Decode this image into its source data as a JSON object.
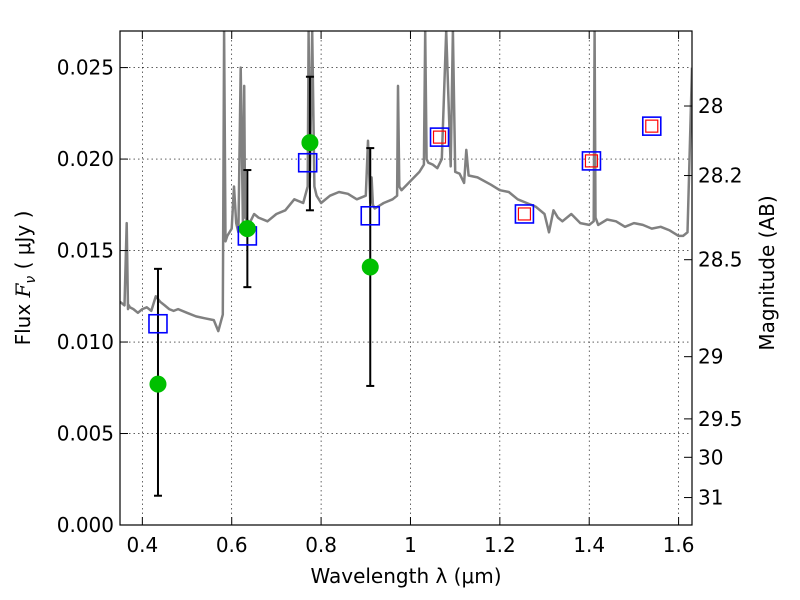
{
  "chart_data": {
    "type": "scatter",
    "xlabel": "Wavelength  λ (μm)",
    "ylabel": "Flux  F_ν  ( μJy )",
    "ylabel_parts": {
      "pre": "Flux  ",
      "symbol": "F",
      "sub": "ν",
      "post": "  ( μJy )"
    },
    "y2label": "Magnitude (AB)",
    "xlim": [
      0.35,
      1.63
    ],
    "ylim": [
      0.0,
      0.027
    ],
    "grid": true,
    "x_ticks": [
      {
        "v": 0.4,
        "label": "0.4"
      },
      {
        "v": 0.6,
        "label": "0.6"
      },
      {
        "v": 0.8,
        "label": "0.8"
      },
      {
        "v": 1.0,
        "label": "1"
      },
      {
        "v": 1.2,
        "label": "1.2"
      },
      {
        "v": 1.4,
        "label": "1.4"
      },
      {
        "v": 1.6,
        "label": "1.6"
      }
    ],
    "y_ticks": [
      {
        "v": 0.0,
        "label": "0.000"
      },
      {
        "v": 0.005,
        "label": "0.005"
      },
      {
        "v": 0.01,
        "label": "0.010"
      },
      {
        "v": 0.015,
        "label": "0.015"
      },
      {
        "v": 0.02,
        "label": "0.020"
      },
      {
        "v": 0.025,
        "label": "0.025"
      }
    ],
    "y2_ticks": [
      {
        "flux": 0.0229,
        "label": "28"
      },
      {
        "flux": 0.0191,
        "label": "28.2"
      },
      {
        "flux": 0.0145,
        "label": "28.5"
      },
      {
        "flux": 0.0092,
        "label": "29"
      },
      {
        "flux": 0.0058,
        "label": "29.5"
      },
      {
        "flux": 0.0037,
        "label": "30"
      },
      {
        "flux": 0.0015,
        "label": "31"
      }
    ],
    "series": [
      {
        "kind": "model_spectrum",
        "color": "#808080",
        "x": [
          0.35,
          0.36,
          0.365,
          0.368,
          0.37,
          0.372,
          0.38,
          0.39,
          0.4,
          0.41,
          0.42,
          0.43,
          0.44,
          0.45,
          0.46,
          0.47,
          0.48,
          0.5,
          0.52,
          0.54,
          0.56,
          0.57,
          0.58,
          0.583,
          0.586,
          0.59,
          0.6,
          0.605,
          0.61,
          0.615,
          0.62,
          0.625,
          0.628,
          0.63,
          0.64,
          0.65,
          0.66,
          0.68,
          0.7,
          0.72,
          0.74,
          0.76,
          0.77,
          0.772,
          0.775,
          0.78,
          0.785,
          0.79,
          0.8,
          0.82,
          0.84,
          0.86,
          0.88,
          0.9,
          0.905,
          0.91,
          0.913,
          0.916,
          0.92,
          0.94,
          0.96,
          0.97,
          0.972,
          0.975,
          0.98,
          1.0,
          1.02,
          1.03,
          1.033,
          1.036,
          1.04,
          1.05,
          1.06,
          1.07,
          1.08,
          1.09,
          1.095,
          1.1,
          1.11,
          1.12,
          1.125,
          1.13,
          1.15,
          1.18,
          1.2,
          1.22,
          1.24,
          1.26,
          1.28,
          1.3,
          1.31,
          1.32,
          1.33,
          1.34,
          1.36,
          1.38,
          1.4,
          1.41,
          1.412,
          1.414,
          1.42,
          1.44,
          1.46,
          1.48,
          1.5,
          1.52,
          1.54,
          1.56,
          1.58,
          1.6,
          1.61,
          1.62,
          1.63
        ],
        "y": [
          0.0122,
          0.012,
          0.0165,
          0.0118,
          0.012,
          0.0119,
          0.0118,
          0.0116,
          0.0118,
          0.0119,
          0.0117,
          0.0125,
          0.0122,
          0.012,
          0.0118,
          0.0117,
          0.0118,
          0.0116,
          0.0114,
          0.0113,
          0.0112,
          0.0106,
          0.0115,
          0.027,
          0.0155,
          0.0158,
          0.0162,
          0.0185,
          0.0165,
          0.016,
          0.025,
          0.0165,
          0.024,
          0.0168,
          0.0165,
          0.017,
          0.0168,
          0.0166,
          0.017,
          0.0172,
          0.0178,
          0.0176,
          0.0185,
          0.027,
          0.019,
          0.027,
          0.0185,
          0.018,
          0.0176,
          0.018,
          0.0182,
          0.0181,
          0.0178,
          0.018,
          0.021,
          0.0176,
          0.019,
          0.0175,
          0.0173,
          0.0176,
          0.0178,
          0.018,
          0.024,
          0.0185,
          0.0183,
          0.0188,
          0.0193,
          0.0197,
          0.027,
          0.02,
          0.0198,
          0.0197,
          0.0195,
          0.02,
          0.027,
          0.0196,
          0.027,
          0.0193,
          0.0192,
          0.0187,
          0.0205,
          0.0191,
          0.019,
          0.0186,
          0.0183,
          0.0182,
          0.0178,
          0.0176,
          0.0174,
          0.017,
          0.016,
          0.0172,
          0.0168,
          0.0166,
          0.017,
          0.0165,
          0.0164,
          0.0166,
          0.027,
          0.0168,
          0.0164,
          0.0167,
          0.0166,
          0.0163,
          0.0165,
          0.0164,
          0.0162,
          0.0163,
          0.0161,
          0.0158,
          0.0158,
          0.016,
          0.025
        ]
      },
      {
        "kind": "observed",
        "marker": "filled-circle",
        "color": "#00c000",
        "points": [
          {
            "x": 0.435,
            "y": 0.0077,
            "ylow": 0.0016,
            "yhigh": 0.014
          },
          {
            "x": 0.635,
            "y": 0.0162,
            "ylow": 0.013,
            "yhigh": 0.0194
          },
          {
            "x": 0.775,
            "y": 0.0209,
            "ylow": 0.0172,
            "yhigh": 0.0245
          },
          {
            "x": 0.91,
            "y": 0.0141,
            "ylow": 0.0076,
            "yhigh": 0.0206
          }
        ]
      },
      {
        "kind": "model_photometry",
        "marker": "open-square",
        "color": "#0000ff",
        "points": [
          {
            "x": 0.435,
            "y": 0.011
          },
          {
            "x": 0.635,
            "y": 0.0158
          },
          {
            "x": 0.77,
            "y": 0.0198
          },
          {
            "x": 0.91,
            "y": 0.0169
          },
          {
            "x": 1.065,
            "y": 0.0212
          },
          {
            "x": 1.255,
            "y": 0.017
          },
          {
            "x": 1.405,
            "y": 0.0199
          },
          {
            "x": 1.54,
            "y": 0.0218
          }
        ]
      },
      {
        "kind": "nir_photometry",
        "marker": "open-square",
        "color": "#ff0000",
        "points": [
          {
            "x": 1.065,
            "y": 0.0212
          },
          {
            "x": 1.255,
            "y": 0.017
          },
          {
            "x": 1.405,
            "y": 0.0199
          },
          {
            "x": 1.54,
            "y": 0.0218
          }
        ]
      }
    ]
  }
}
